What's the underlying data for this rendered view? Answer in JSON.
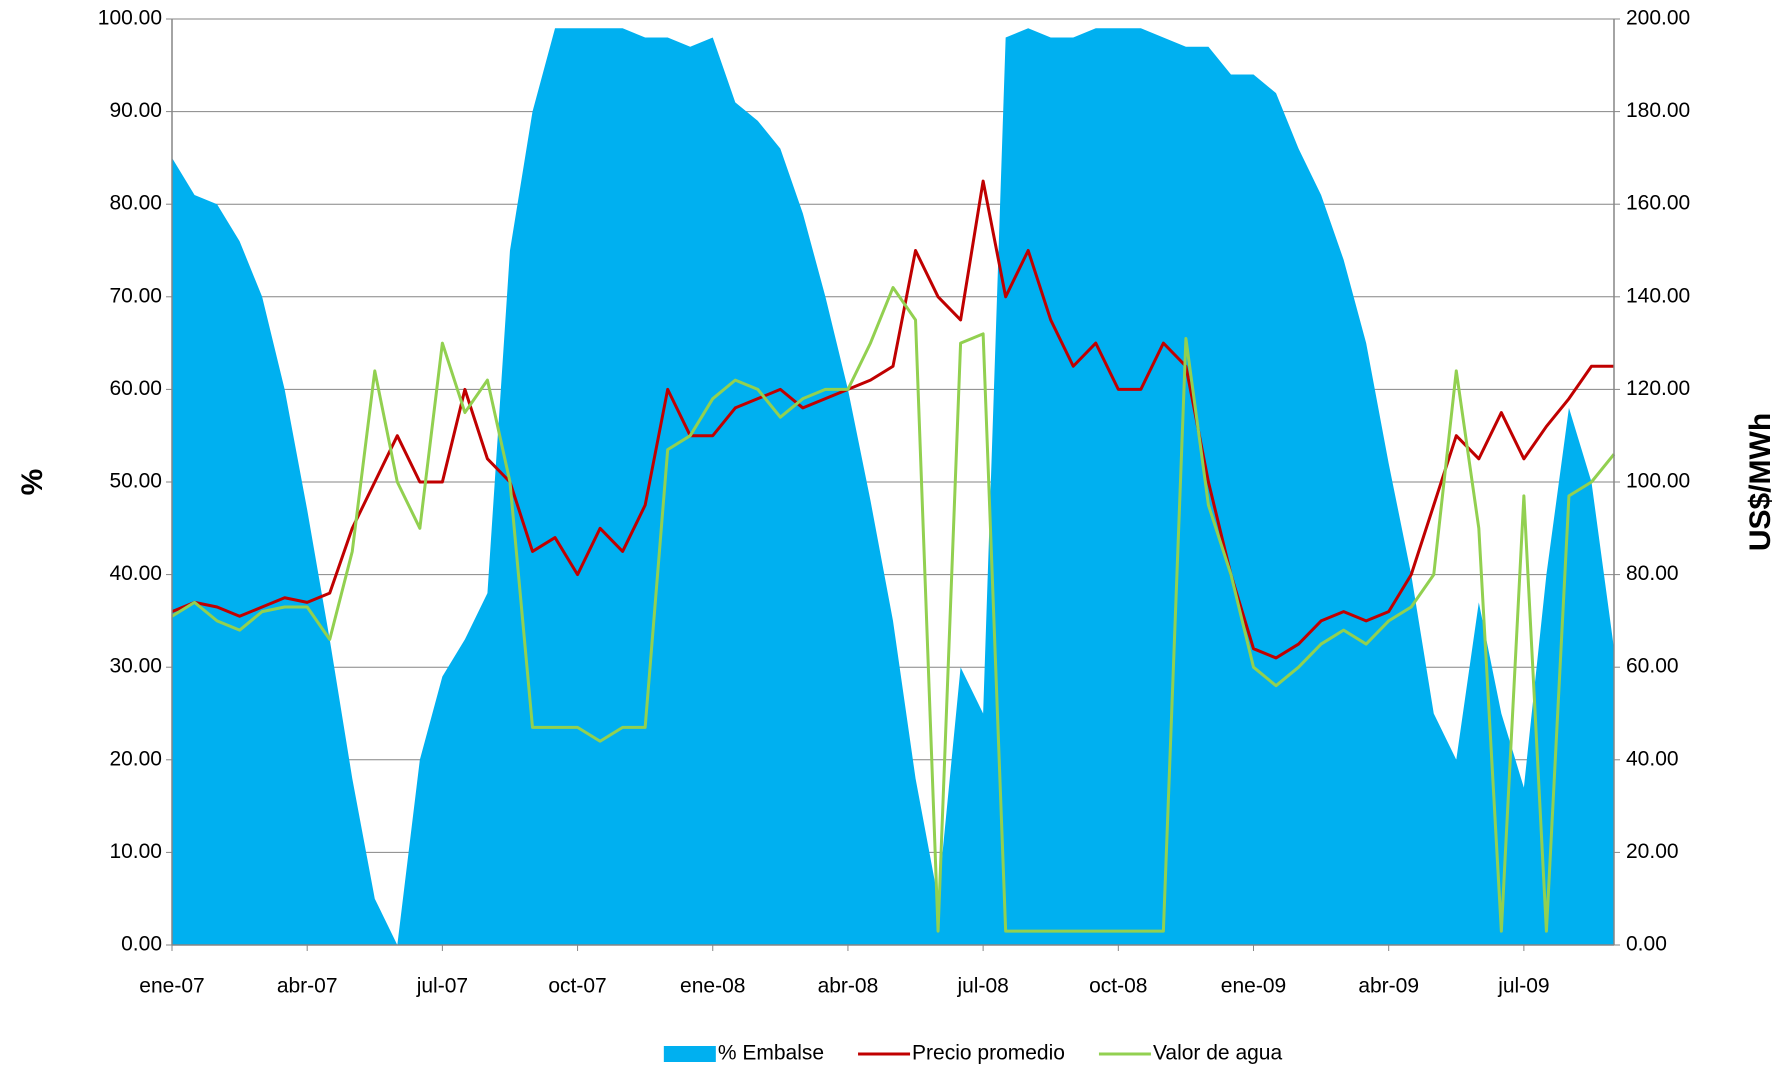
{
  "chart_data": {
    "type": "line",
    "categories": [
      "ene-07",
      null,
      null,
      null,
      null,
      null,
      "abr-07",
      null,
      null,
      null,
      null,
      null,
      "jul-07",
      null,
      null,
      null,
      null,
      null,
      "oct-07",
      null,
      null,
      null,
      null,
      null,
      "ene-08",
      null,
      null,
      null,
      null,
      null,
      "abr-08",
      null,
      null,
      null,
      null,
      null,
      "jul-08",
      null,
      null,
      null,
      null,
      null,
      "oct-08",
      null,
      null,
      null,
      null,
      null,
      "ene-09",
      null,
      null,
      null,
      null,
      null,
      "abr-09",
      null,
      null,
      null,
      null,
      null,
      "jul-09",
      null,
      null,
      null,
      null
    ],
    "ylabel": "%",
    "y2label": "US$/MWh",
    "ylim": [
      0,
      100
    ],
    "yticks": [
      {
        "value": 0,
        "label": "0.00"
      },
      {
        "value": 10,
        "label": "10.00"
      },
      {
        "value": 20,
        "label": "20.00"
      },
      {
        "value": 30,
        "label": "30.00"
      },
      {
        "value": 40,
        "label": "40.00"
      },
      {
        "value": 50,
        "label": "50.00"
      },
      {
        "value": 60,
        "label": "60.00"
      },
      {
        "value": 70,
        "label": "70.00"
      },
      {
        "value": 80,
        "label": "80.00"
      },
      {
        "value": 90,
        "label": "90.00"
      },
      {
        "value": 100,
        "label": "100.00"
      }
    ],
    "y2lim": [
      0,
      200
    ],
    "y2ticks": [
      {
        "value": 0,
        "label": "0.00"
      },
      {
        "value": 20,
        "label": "20.00"
      },
      {
        "value": 40,
        "label": "40.00"
      },
      {
        "value": 60,
        "label": "60.00"
      },
      {
        "value": 80,
        "label": "80.00"
      },
      {
        "value": 100,
        "label": "100.00"
      },
      {
        "value": 120,
        "label": "120.00"
      },
      {
        "value": 140,
        "label": "140.00"
      },
      {
        "value": 160,
        "label": "160.00"
      },
      {
        "value": 180,
        "label": "180.00"
      },
      {
        "value": 200,
        "label": "200.00"
      }
    ],
    "grid": true,
    "legend": "bottom",
    "series": [
      {
        "name": "% Embalse",
        "kind": "area",
        "color": "#00b0f0",
        "values": [
          85,
          81,
          80,
          76,
          70,
          60,
          47,
          33,
          18,
          5,
          0,
          20,
          29,
          33,
          38,
          75,
          90,
          99,
          99,
          99,
          99,
          98,
          98,
          97,
          98,
          91,
          89,
          86,
          79,
          70,
          60,
          48,
          35,
          18,
          5,
          30,
          25,
          98,
          99,
          98,
          98,
          99,
          99,
          99,
          98,
          97,
          97,
          94,
          94,
          92,
          86,
          81,
          74,
          65,
          52,
          40,
          25,
          20,
          37,
          25,
          17,
          40,
          58,
          50,
          32
        ]
      },
      {
        "name": "Precio promedio",
        "kind": "line",
        "axis": "y2",
        "color": "#c00000",
        "values": [
          72,
          74,
          73,
          71,
          73,
          75,
          74,
          76,
          90,
          100,
          110,
          100,
          100,
          120,
          105,
          100,
          85,
          88,
          80,
          90,
          85,
          95,
          120,
          110,
          110,
          116,
          118,
          120,
          116,
          118,
          120,
          122,
          125,
          150,
          140,
          135,
          165,
          140,
          150,
          135,
          125,
          130,
          120,
          120,
          130,
          125,
          100,
          80,
          64,
          62,
          65,
          70,
          72,
          70,
          72,
          80,
          95,
          110,
          105,
          115,
          105,
          112,
          118,
          125,
          125
        ]
      },
      {
        "name": "Valor de agua",
        "kind": "line",
        "axis": "y2",
        "color": "#92d050",
        "values": [
          71,
          74,
          70,
          68,
          72,
          73,
          73,
          66,
          85,
          124,
          100,
          90,
          130,
          115,
          122,
          100,
          47,
          47,
          47,
          44,
          47,
          47,
          107,
          110,
          118,
          122,
          120,
          114,
          118,
          120,
          120,
          130,
          142,
          135,
          3,
          130,
          132,
          3,
          3,
          3,
          3,
          3,
          3,
          3,
          3,
          131,
          95,
          80,
          60,
          56,
          60,
          65,
          68,
          65,
          70,
          73,
          80,
          124,
          90,
          3,
          97,
          3,
          97,
          100,
          106
        ]
      }
    ]
  }
}
